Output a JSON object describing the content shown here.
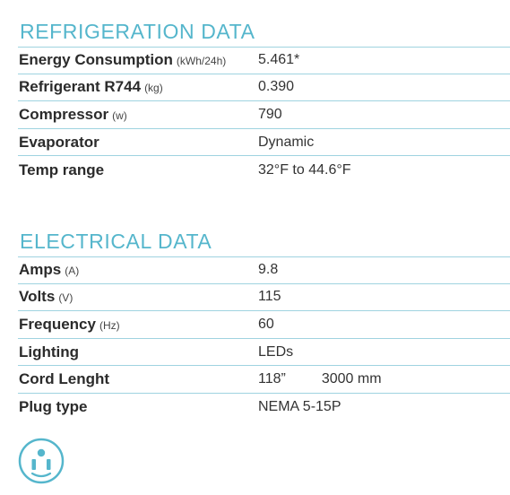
{
  "refrigeration": {
    "title": "REFRIGERATION DATA",
    "rows": [
      {
        "label": "Energy Consumption",
        "unit": "(kWh/24h)",
        "value": "5.461*"
      },
      {
        "label": "Refrigerant R744",
        "unit": "(kg)",
        "value": "0.390"
      },
      {
        "label": "Compressor",
        "unit": "(w)",
        "value": "790"
      },
      {
        "label": "Evaporator",
        "unit": "",
        "value": "Dynamic"
      },
      {
        "label": "Temp range",
        "unit": "",
        "value": "32°F to 44.6°F"
      }
    ]
  },
  "electrical": {
    "title": "ELECTRICAL DATA",
    "rows": [
      {
        "label": "Amps",
        "unit": "(A)",
        "value": "9.8"
      },
      {
        "label": "Volts",
        "unit": "(V)",
        "value": "115"
      },
      {
        "label": "Frequency",
        "unit": "(Hz)",
        "value": "60"
      },
      {
        "label": "Lighting",
        "unit": "",
        "value": "LEDs"
      },
      {
        "label": "Cord Lenght",
        "unit": "",
        "value": "118”",
        "value2": "3000 mm"
      },
      {
        "label": "Plug type",
        "unit": "",
        "value": "NEMA 5-15P"
      }
    ]
  },
  "icons": {
    "plug": "nema-5-15-outlet-icon",
    "accent_color": "#55b6cc"
  }
}
